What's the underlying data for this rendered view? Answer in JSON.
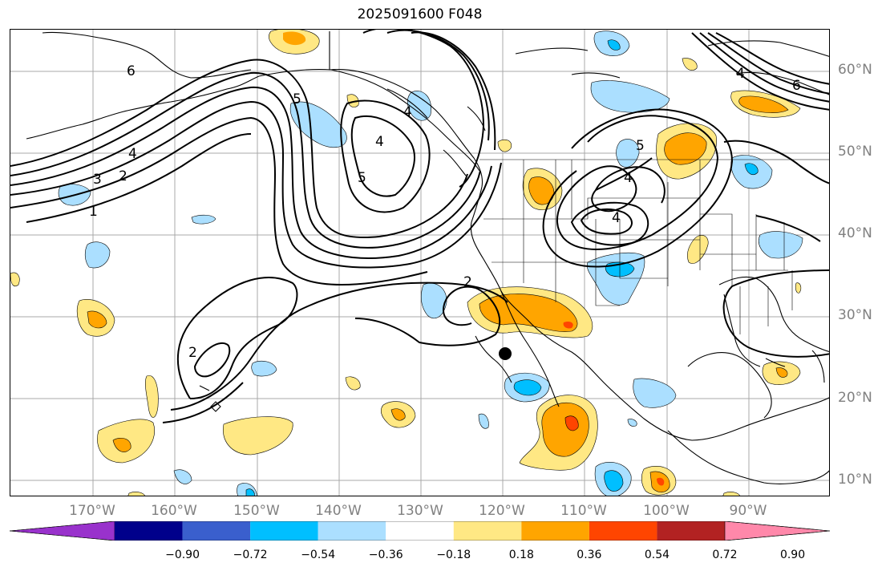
{
  "title": "2025091600 F048",
  "lat_labels": [
    "60°N",
    "50°N",
    "40°N",
    "30°N",
    "20°N",
    "10°N"
  ],
  "lon_labels": [
    "170°W",
    "160°W",
    "150°W",
    "140°W",
    "130°W",
    "120°W",
    "110°W",
    "100°W",
    "90°W"
  ],
  "colorbar": {
    "colors": [
      "#9932cc",
      "#00008b",
      "#3a5fcd",
      "#00bfff",
      "#abdfff",
      "#ffffff",
      "#ffe884",
      "#ffa500",
      "#ff4500",
      "#b22222",
      "#ff88aa"
    ],
    "labels": [
      "−0.90",
      "−0.72",
      "−0.54",
      "−0.36",
      "−0.18",
      "0.18",
      "0.36",
      "0.54",
      "0.72",
      "0.90"
    ]
  },
  "contour_labels": [
    "6",
    "5",
    "4",
    "3",
    "2",
    "1",
    "4",
    "5",
    "2",
    "2",
    "5",
    "4",
    "4",
    "6",
    "4",
    "4"
  ],
  "marker": "storm-center-dot"
}
